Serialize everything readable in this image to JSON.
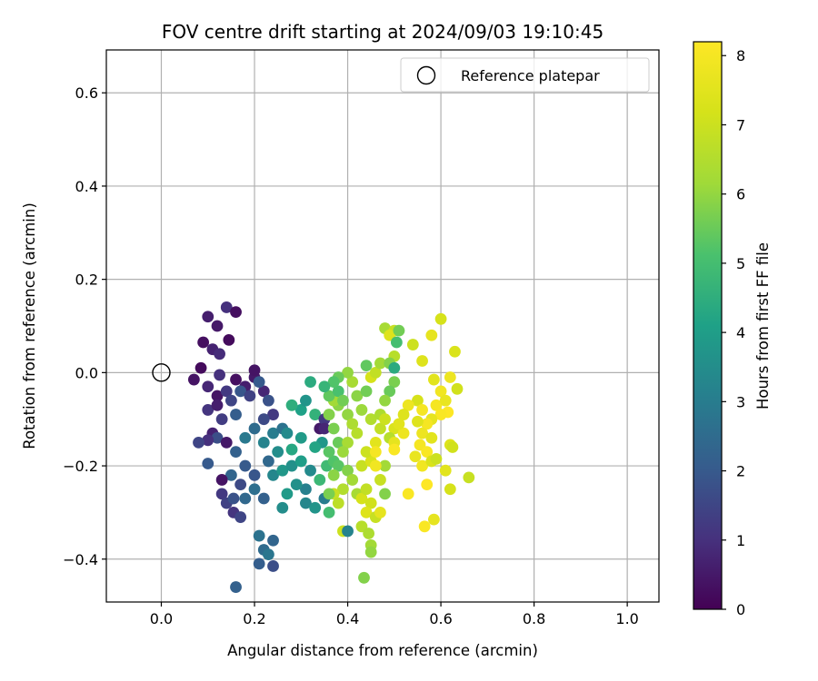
{
  "chart_data": {
    "type": "scatter",
    "title": "FOV centre drift starting at 2024/09/03 19:10:45",
    "xlabel": "Angular distance from reference (arcmin)",
    "ylabel": "Rotation from reference (arcmin)",
    "xlim": [
      -0.118,
      1.068
    ],
    "ylim": [
      -0.492,
      0.692
    ],
    "xticks": [
      0.0,
      0.2,
      0.4,
      0.6,
      0.8,
      1.0
    ],
    "xtick_labels": [
      "0.0",
      "0.2",
      "0.4",
      "0.6",
      "0.8",
      "1.0"
    ],
    "yticks": [
      -0.4,
      -0.2,
      0.0,
      0.2,
      0.4,
      0.6
    ],
    "ytick_labels": [
      "−0.4",
      "−0.2",
      "0.0",
      "0.2",
      "0.4",
      "0.6"
    ],
    "grid": true,
    "legend": {
      "position": "top-right",
      "label": "Reference platepar"
    },
    "reference_point": {
      "x": 0.0,
      "y": 0.0
    },
    "colorbar": {
      "label": "Hours from first FF file",
      "min": 0,
      "max": 8.2,
      "ticks": [
        0,
        1,
        2,
        3,
        4,
        5,
        6,
        7,
        8
      ],
      "colormap": "viridis"
    },
    "points": [
      {
        "x": 0.07,
        "y": -0.015,
        "h": 0.4
      },
      {
        "x": 0.085,
        "y": 0.01,
        "h": 0.2
      },
      {
        "x": 0.09,
        "y": 0.065,
        "h": 0.3
      },
      {
        "x": 0.1,
        "y": 0.12,
        "h": 0.6
      },
      {
        "x": 0.12,
        "y": 0.1,
        "h": 0.5
      },
      {
        "x": 0.14,
        "y": 0.14,
        "h": 1.0
      },
      {
        "x": 0.16,
        "y": 0.13,
        "h": 0.3
      },
      {
        "x": 0.145,
        "y": 0.07,
        "h": 0.2
      },
      {
        "x": 0.11,
        "y": 0.05,
        "h": 0.7
      },
      {
        "x": 0.125,
        "y": 0.04,
        "h": 0.9
      },
      {
        "x": 0.1,
        "y": -0.03,
        "h": 0.8
      },
      {
        "x": 0.12,
        "y": -0.05,
        "h": 0.4
      },
      {
        "x": 0.14,
        "y": -0.04,
        "h": 1.2
      },
      {
        "x": 0.16,
        "y": -0.015,
        "h": 0.3
      },
      {
        "x": 0.125,
        "y": -0.005,
        "h": 1.0
      },
      {
        "x": 0.18,
        "y": -0.03,
        "h": 0.6
      },
      {
        "x": 0.2,
        "y": -0.01,
        "h": 0.5
      },
      {
        "x": 0.2,
        "y": 0.005,
        "h": 0.4
      },
      {
        "x": 0.22,
        "y": -0.04,
        "h": 0.8
      },
      {
        "x": 0.1,
        "y": -0.08,
        "h": 1.1
      },
      {
        "x": 0.12,
        "y": -0.07,
        "h": 0.6
      },
      {
        "x": 0.15,
        "y": -0.06,
        "h": 1.5
      },
      {
        "x": 0.17,
        "y": -0.04,
        "h": 1.9
      },
      {
        "x": 0.19,
        "y": -0.05,
        "h": 1.4
      },
      {
        "x": 0.21,
        "y": -0.02,
        "h": 2.0
      },
      {
        "x": 0.23,
        "y": -0.06,
        "h": 1.8
      },
      {
        "x": 0.24,
        "y": -0.09,
        "h": 1.2
      },
      {
        "x": 0.22,
        "y": -0.1,
        "h": 1.6
      },
      {
        "x": 0.16,
        "y": -0.09,
        "h": 2.1
      },
      {
        "x": 0.13,
        "y": -0.1,
        "h": 1.3
      },
      {
        "x": 0.11,
        "y": -0.13,
        "h": 0.7
      },
      {
        "x": 0.12,
        "y": -0.14,
        "h": 1.7
      },
      {
        "x": 0.14,
        "y": -0.15,
        "h": 0.5
      },
      {
        "x": 0.1,
        "y": -0.145,
        "h": 1.0
      },
      {
        "x": 0.08,
        "y": -0.15,
        "h": 1.5
      },
      {
        "x": 0.16,
        "y": -0.17,
        "h": 2.2
      },
      {
        "x": 0.18,
        "y": -0.2,
        "h": 2.0
      },
      {
        "x": 0.2,
        "y": -0.22,
        "h": 1.9
      },
      {
        "x": 0.15,
        "y": -0.22,
        "h": 2.3
      },
      {
        "x": 0.17,
        "y": -0.24,
        "h": 1.6
      },
      {
        "x": 0.13,
        "y": -0.26,
        "h": 1.2
      },
      {
        "x": 0.14,
        "y": -0.28,
        "h": 1.4
      },
      {
        "x": 0.155,
        "y": -0.3,
        "h": 1.1
      },
      {
        "x": 0.17,
        "y": -0.31,
        "h": 1.5
      },
      {
        "x": 0.155,
        "y": -0.27,
        "h": 1.8
      },
      {
        "x": 0.18,
        "y": -0.27,
        "h": 2.4
      },
      {
        "x": 0.2,
        "y": -0.25,
        "h": 2.6
      },
      {
        "x": 0.13,
        "y": -0.23,
        "h": 0.4
      },
      {
        "x": 0.1,
        "y": -0.195,
        "h": 2.0
      },
      {
        "x": 0.21,
        "y": -0.35,
        "h": 2.7
      },
      {
        "x": 0.22,
        "y": -0.38,
        "h": 2.5
      },
      {
        "x": 0.24,
        "y": -0.36,
        "h": 2.3
      },
      {
        "x": 0.21,
        "y": -0.41,
        "h": 2.1
      },
      {
        "x": 0.24,
        "y": -0.415,
        "h": 1.7
      },
      {
        "x": 0.23,
        "y": -0.39,
        "h": 2.8
      },
      {
        "x": 0.16,
        "y": -0.46,
        "h": 2.2
      },
      {
        "x": 0.2,
        "y": -0.12,
        "h": 2.5
      },
      {
        "x": 0.18,
        "y": -0.14,
        "h": 2.9
      },
      {
        "x": 0.22,
        "y": -0.15,
        "h": 3.2
      },
      {
        "x": 0.24,
        "y": -0.13,
        "h": 3.0
      },
      {
        "x": 0.26,
        "y": -0.12,
        "h": 2.7
      },
      {
        "x": 0.25,
        "y": -0.17,
        "h": 3.5
      },
      {
        "x": 0.23,
        "y": -0.19,
        "h": 2.4
      },
      {
        "x": 0.22,
        "y": -0.27,
        "h": 2.2
      },
      {
        "x": 0.24,
        "y": -0.22,
        "h": 3.3
      },
      {
        "x": 0.26,
        "y": -0.21,
        "h": 3.8
      },
      {
        "x": 0.28,
        "y": -0.2,
        "h": 3.6
      },
      {
        "x": 0.3,
        "y": -0.19,
        "h": 4.0
      },
      {
        "x": 0.28,
        "y": -0.165,
        "h": 4.3
      },
      {
        "x": 0.3,
        "y": -0.14,
        "h": 3.9
      },
      {
        "x": 0.27,
        "y": -0.13,
        "h": 3.4
      },
      {
        "x": 0.3,
        "y": -0.08,
        "h": 4.1
      },
      {
        "x": 0.28,
        "y": -0.07,
        "h": 4.5
      },
      {
        "x": 0.31,
        "y": -0.06,
        "h": 3.7
      },
      {
        "x": 0.32,
        "y": -0.02,
        "h": 4.4
      },
      {
        "x": 0.33,
        "y": -0.09,
        "h": 4.6
      },
      {
        "x": 0.34,
        "y": -0.12,
        "h": 0.5
      },
      {
        "x": 0.345,
        "y": -0.15,
        "h": 3.8
      },
      {
        "x": 0.35,
        "y": -0.1,
        "h": 1.2
      },
      {
        "x": 0.35,
        "y": -0.12,
        "h": 0.8
      },
      {
        "x": 0.33,
        "y": -0.16,
        "h": 4.2
      },
      {
        "x": 0.32,
        "y": -0.21,
        "h": 3.4
      },
      {
        "x": 0.34,
        "y": -0.23,
        "h": 4.8
      },
      {
        "x": 0.31,
        "y": -0.25,
        "h": 3.1
      },
      {
        "x": 0.29,
        "y": -0.24,
        "h": 3.6
      },
      {
        "x": 0.27,
        "y": -0.26,
        "h": 3.9
      },
      {
        "x": 0.26,
        "y": -0.29,
        "h": 3.5
      },
      {
        "x": 0.31,
        "y": -0.28,
        "h": 3.3
      },
      {
        "x": 0.33,
        "y": -0.29,
        "h": 3.7
      },
      {
        "x": 0.35,
        "y": -0.27,
        "h": 3.0
      },
      {
        "x": 0.36,
        "y": -0.3,
        "h": 5.0
      },
      {
        "x": 0.355,
        "y": -0.2,
        "h": 4.9
      },
      {
        "x": 0.37,
        "y": -0.19,
        "h": 5.2
      },
      {
        "x": 0.36,
        "y": -0.17,
        "h": 5.3
      },
      {
        "x": 0.38,
        "y": -0.15,
        "h": 5.5
      },
      {
        "x": 0.37,
        "y": -0.12,
        "h": 5.7
      },
      {
        "x": 0.36,
        "y": -0.09,
        "h": 5.8
      },
      {
        "x": 0.38,
        "y": -0.07,
        "h": 5.9
      },
      {
        "x": 0.37,
        "y": -0.06,
        "h": 6.2
      },
      {
        "x": 0.36,
        "y": -0.05,
        "h": 5.4
      },
      {
        "x": 0.38,
        "y": -0.04,
        "h": 5.1
      },
      {
        "x": 0.39,
        "y": -0.06,
        "h": 5.6
      },
      {
        "x": 0.4,
        "y": -0.09,
        "h": 6.0
      },
      {
        "x": 0.41,
        "y": -0.11,
        "h": 6.4
      },
      {
        "x": 0.42,
        "y": -0.13,
        "h": 6.6
      },
      {
        "x": 0.4,
        "y": -0.15,
        "h": 6.3
      },
      {
        "x": 0.39,
        "y": -0.17,
        "h": 6.1
      },
      {
        "x": 0.38,
        "y": -0.2,
        "h": 5.3
      },
      {
        "x": 0.4,
        "y": -0.21,
        "h": 5.8
      },
      {
        "x": 0.41,
        "y": -0.23,
        "h": 6.2
      },
      {
        "x": 0.39,
        "y": -0.25,
        "h": 6.5
      },
      {
        "x": 0.37,
        "y": -0.22,
        "h": 5.9
      },
      {
        "x": 0.37,
        "y": -0.26,
        "h": 6.9
      },
      {
        "x": 0.38,
        "y": -0.28,
        "h": 6.7
      },
      {
        "x": 0.39,
        "y": -0.34,
        "h": 7.0
      },
      {
        "x": 0.4,
        "y": -0.34,
        "h": 3.2
      },
      {
        "x": 0.42,
        "y": -0.26,
        "h": 6.3
      },
      {
        "x": 0.43,
        "y": -0.27,
        "h": 7.2
      },
      {
        "x": 0.44,
        "y": -0.25,
        "h": 6.8
      },
      {
        "x": 0.45,
        "y": -0.28,
        "h": 7.1
      },
      {
        "x": 0.44,
        "y": -0.3,
        "h": 7.4
      },
      {
        "x": 0.46,
        "y": -0.31,
        "h": 6.9
      },
      {
        "x": 0.47,
        "y": -0.3,
        "h": 7.6
      },
      {
        "x": 0.43,
        "y": -0.33,
        "h": 6.6
      },
      {
        "x": 0.445,
        "y": -0.345,
        "h": 6.4
      },
      {
        "x": 0.45,
        "y": -0.37,
        "h": 6.2
      },
      {
        "x": 0.45,
        "y": -0.385,
        "h": 6.0
      },
      {
        "x": 0.435,
        "y": -0.44,
        "h": 5.8
      },
      {
        "x": 0.36,
        "y": -0.26,
        "h": 5.7
      },
      {
        "x": 0.43,
        "y": -0.2,
        "h": 6.9
      },
      {
        "x": 0.45,
        "y": -0.19,
        "h": 7.3
      },
      {
        "x": 0.44,
        "y": -0.17,
        "h": 7.0
      },
      {
        "x": 0.46,
        "y": -0.15,
        "h": 7.5
      },
      {
        "x": 0.47,
        "y": -0.12,
        "h": 6.8
      },
      {
        "x": 0.45,
        "y": -0.1,
        "h": 6.5
      },
      {
        "x": 0.43,
        "y": -0.08,
        "h": 6.1
      },
      {
        "x": 0.42,
        "y": -0.05,
        "h": 5.9
      },
      {
        "x": 0.44,
        "y": -0.04,
        "h": 5.6
      },
      {
        "x": 0.41,
        "y": -0.02,
        "h": 6.3
      },
      {
        "x": 0.4,
        "y": 0.0,
        "h": 6.0
      },
      {
        "x": 0.38,
        "y": -0.01,
        "h": 5.5
      },
      {
        "x": 0.37,
        "y": -0.02,
        "h": 5.2
      },
      {
        "x": 0.35,
        "y": -0.03,
        "h": 4.7
      },
      {
        "x": 0.44,
        "y": 0.015,
        "h": 5.4
      },
      {
        "x": 0.45,
        "y": -0.01,
        "h": 7.2
      },
      {
        "x": 0.46,
        "y": 0.0,
        "h": 6.8
      },
      {
        "x": 0.47,
        "y": 0.02,
        "h": 6.2
      },
      {
        "x": 0.48,
        "y": 0.095,
        "h": 6.3
      },
      {
        "x": 0.5,
        "y": 0.09,
        "h": 6.9
      },
      {
        "x": 0.49,
        "y": 0.08,
        "h": 7.4
      },
      {
        "x": 0.51,
        "y": 0.09,
        "h": 5.6
      },
      {
        "x": 0.505,
        "y": 0.065,
        "h": 5.0
      },
      {
        "x": 0.5,
        "y": 0.035,
        "h": 6.6
      },
      {
        "x": 0.49,
        "y": 0.02,
        "h": 5.8
      },
      {
        "x": 0.5,
        "y": 0.01,
        "h": 4.4
      },
      {
        "x": 0.5,
        "y": -0.02,
        "h": 5.7
      },
      {
        "x": 0.49,
        "y": -0.04,
        "h": 5.5
      },
      {
        "x": 0.48,
        "y": -0.06,
        "h": 6.0
      },
      {
        "x": 0.47,
        "y": -0.09,
        "h": 6.4
      },
      {
        "x": 0.48,
        "y": -0.1,
        "h": 7.0
      },
      {
        "x": 0.5,
        "y": -0.12,
        "h": 7.3
      },
      {
        "x": 0.49,
        "y": -0.14,
        "h": 6.6
      },
      {
        "x": 0.5,
        "y": -0.15,
        "h": 7.6
      },
      {
        "x": 0.52,
        "y": -0.13,
        "h": 7.8
      },
      {
        "x": 0.51,
        "y": -0.11,
        "h": 7.5
      },
      {
        "x": 0.48,
        "y": -0.2,
        "h": 6.2
      },
      {
        "x": 0.47,
        "y": -0.23,
        "h": 6.9
      },
      {
        "x": 0.48,
        "y": -0.26,
        "h": 5.8
      },
      {
        "x": 0.46,
        "y": -0.2,
        "h": 7.9
      },
      {
        "x": 0.46,
        "y": -0.17,
        "h": 8.0
      },
      {
        "x": 0.5,
        "y": -0.165,
        "h": 8.1
      },
      {
        "x": 0.53,
        "y": -0.26,
        "h": 8.1
      },
      {
        "x": 0.54,
        "y": 0.06,
        "h": 7.0
      },
      {
        "x": 0.56,
        "y": 0.025,
        "h": 7.4
      },
      {
        "x": 0.58,
        "y": 0.08,
        "h": 7.6
      },
      {
        "x": 0.6,
        "y": 0.115,
        "h": 7.2
      },
      {
        "x": 0.63,
        "y": 0.045,
        "h": 7.3
      },
      {
        "x": 0.585,
        "y": -0.015,
        "h": 7.5
      },
      {
        "x": 0.62,
        "y": -0.01,
        "h": 7.8
      },
      {
        "x": 0.635,
        "y": -0.035,
        "h": 7.1
      },
      {
        "x": 0.6,
        "y": -0.04,
        "h": 7.9
      },
      {
        "x": 0.59,
        "y": -0.07,
        "h": 8.0
      },
      {
        "x": 0.61,
        "y": -0.06,
        "h": 7.7
      },
      {
        "x": 0.615,
        "y": -0.085,
        "h": 8.2
      },
      {
        "x": 0.6,
        "y": -0.09,
        "h": 8.1
      },
      {
        "x": 0.58,
        "y": -0.1,
        "h": 7.6
      },
      {
        "x": 0.57,
        "y": -0.11,
        "h": 8.0
      },
      {
        "x": 0.55,
        "y": -0.105,
        "h": 7.4
      },
      {
        "x": 0.56,
        "y": -0.13,
        "h": 7.8
      },
      {
        "x": 0.58,
        "y": -0.14,
        "h": 7.5
      },
      {
        "x": 0.555,
        "y": -0.155,
        "h": 8.0
      },
      {
        "x": 0.57,
        "y": -0.17,
        "h": 8.1
      },
      {
        "x": 0.545,
        "y": -0.18,
        "h": 7.7
      },
      {
        "x": 0.56,
        "y": -0.2,
        "h": 7.9
      },
      {
        "x": 0.58,
        "y": -0.19,
        "h": 7.3
      },
      {
        "x": 0.59,
        "y": -0.185,
        "h": 7.0
      },
      {
        "x": 0.62,
        "y": -0.155,
        "h": 7.4
      },
      {
        "x": 0.625,
        "y": -0.16,
        "h": 7.1
      },
      {
        "x": 0.61,
        "y": -0.21,
        "h": 7.5
      },
      {
        "x": 0.62,
        "y": -0.25,
        "h": 7.2
      },
      {
        "x": 0.66,
        "y": -0.225,
        "h": 6.9
      },
      {
        "x": 0.585,
        "y": -0.315,
        "h": 7.6
      },
      {
        "x": 0.565,
        "y": -0.33,
        "h": 8.1
      },
      {
        "x": 0.57,
        "y": -0.24,
        "h": 8.2
      },
      {
        "x": 0.55,
        "y": -0.06,
        "h": 7.2
      },
      {
        "x": 0.53,
        "y": -0.07,
        "h": 7.8
      },
      {
        "x": 0.52,
        "y": -0.09,
        "h": 7.4
      },
      {
        "x": 0.56,
        "y": -0.08,
        "h": 8.0
      }
    ]
  }
}
